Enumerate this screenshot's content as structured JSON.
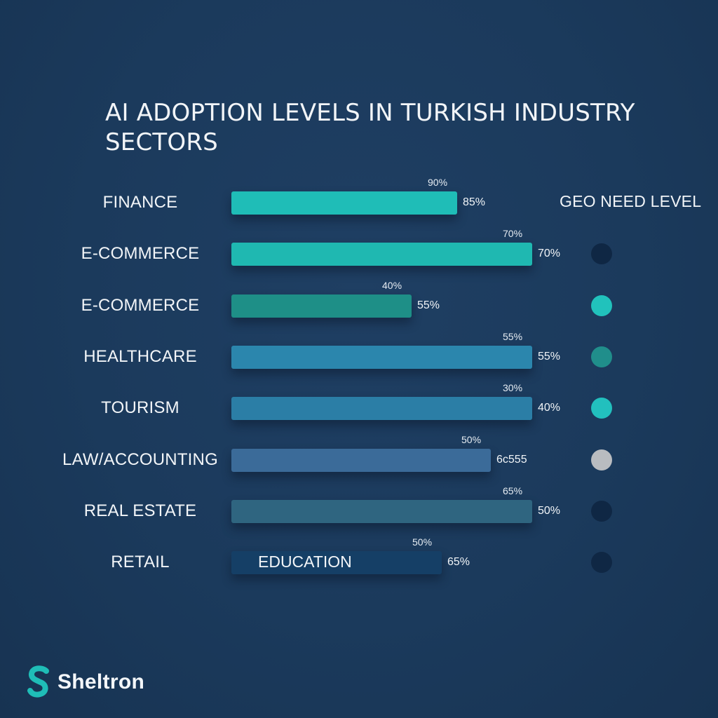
{
  "chart_data": {
    "type": "bar",
    "orientation": "horizontal",
    "title": "AI ADOPTION LEVELS IN TURKISH INDUSTRY SECTORS",
    "legend_title": "GEO NEED LEVEL",
    "xlim": [
      0,
      100
    ],
    "rows": [
      {
        "category": "FINANCE",
        "value": 60,
        "top_label": "90%",
        "side_label": "85%",
        "color": "#1fbdb7",
        "geo_color": null
      },
      {
        "category": "E-COMMERCE",
        "value": 80,
        "top_label": "70%",
        "side_label": "70%",
        "color": "#1fb8b1",
        "geo_color": "#0f2744"
      },
      {
        "category": "E-COMMERCE",
        "value": 48,
        "top_label": "40%",
        "side_label": "55%",
        "color": "#1e8f87",
        "geo_color": "#21c2bc"
      },
      {
        "category": "HEALTHCARE",
        "value": 80,
        "top_label": "55%",
        "side_label": "55%",
        "color": "#2b86ad",
        "geo_color": "#208e8b"
      },
      {
        "category": "TOURISM",
        "value": 80,
        "top_label": "30%",
        "side_label": "40%",
        "color": "#2b7ea6",
        "geo_color": "#22c0be"
      },
      {
        "category": "LAW/ACCOUNTING",
        "value": 69,
        "top_label": "50%",
        "side_label": "6c555",
        "color": "#3b6b99",
        "geo_color": "#b9bcc0"
      },
      {
        "category": "REAL ESTATE",
        "value": 80,
        "top_label": "65%",
        "side_label": "50%",
        "color": "#2f6580",
        "geo_color": "#0f2744"
      },
      {
        "category": "RETAIL",
        "value": 56,
        "top_label": "50%",
        "side_label": "65%",
        "color": "#153f66",
        "geo_color": "#0f2744",
        "inner_label": "EDUCATION"
      }
    ]
  },
  "brand": {
    "name": "Sheltron",
    "accent": "#1fbdb7"
  }
}
